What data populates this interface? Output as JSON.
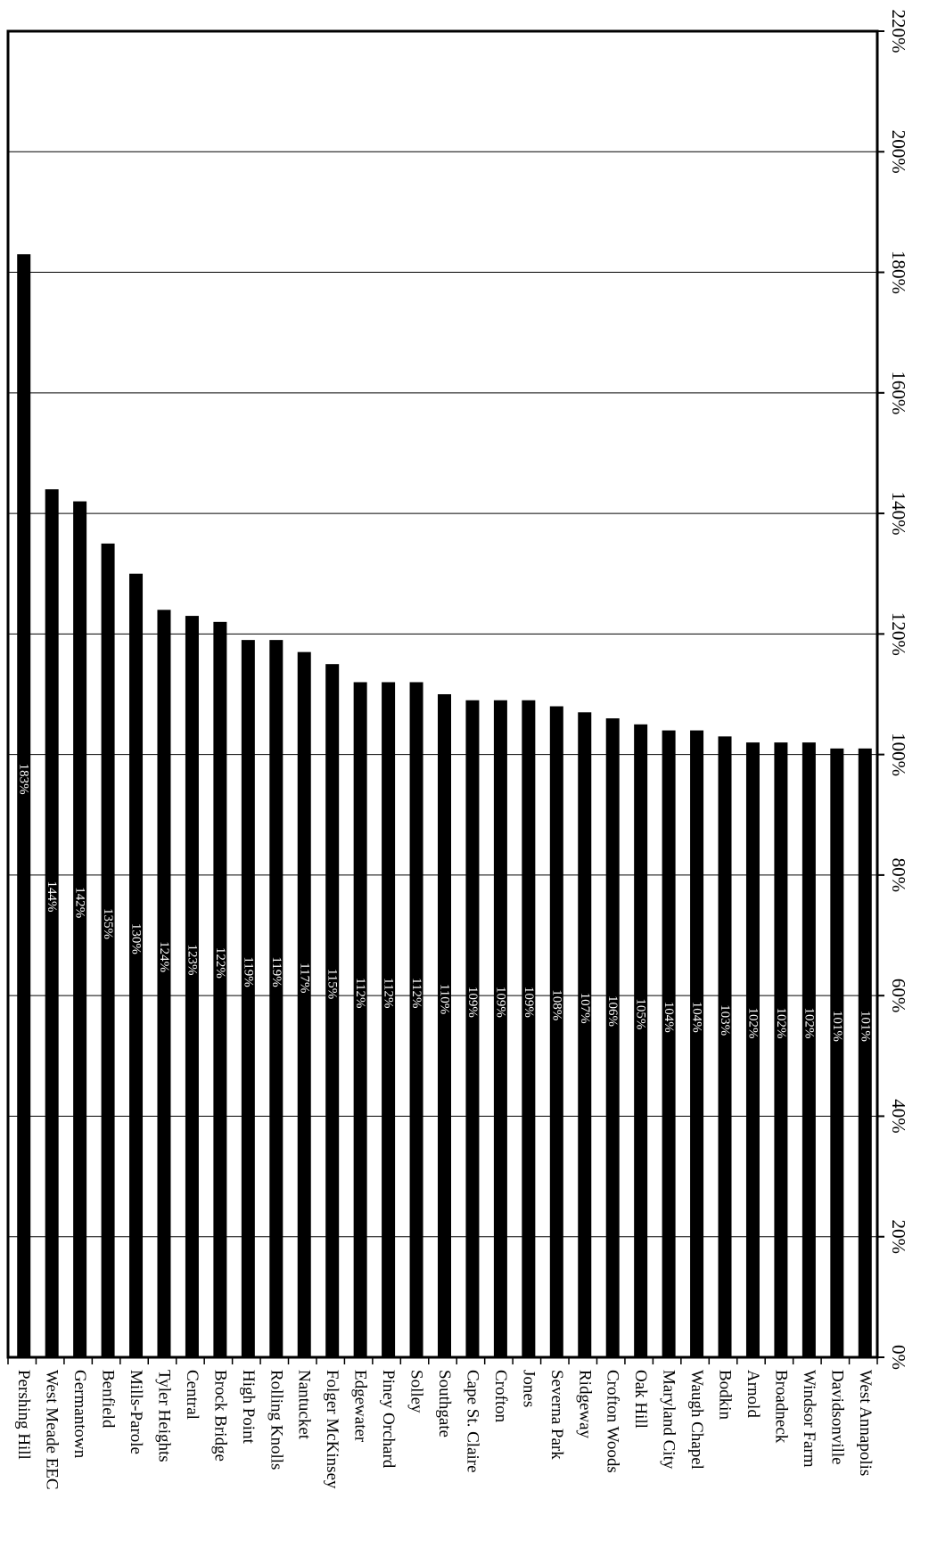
{
  "chart_data": {
    "type": "bar",
    "orientation": "rotated-90-clockwise",
    "categories": [
      "Pershing Hill",
      "West Meade EEC",
      "Germantown",
      "Benfield",
      "Mills-Parole",
      "Tyler Heights",
      "Central",
      "Brock Bridge",
      "High Point",
      "Rolling Knolls",
      "Nantucket",
      "Folger McKinsey",
      "Edgewater",
      "Piney Orchard",
      "Solley",
      "Southgate",
      "Cape St. Claire",
      "Crofton",
      "Jones",
      "Severna Park",
      "Ridgeway",
      "Crofton Woods",
      "Oak Hill",
      "Maryland City",
      "Waugh Chapel",
      "Bodkin",
      "Arnold",
      "Broadneck",
      "Windsor Farm",
      "Davidsonville",
      "West Annapolis"
    ],
    "values": [
      183,
      144,
      142,
      135,
      130,
      124,
      123,
      122,
      119,
      119,
      117,
      115,
      112,
      112,
      112,
      110,
      109,
      109,
      109,
      108,
      107,
      106,
      105,
      104,
      104,
      103,
      102,
      102,
      102,
      101,
      101
    ],
    "data_labels": [
      "183%",
      "144%",
      "142%",
      "135%",
      "130%",
      "124%",
      "123%",
      "122%",
      "119%",
      "119%",
      "117%",
      "115%",
      "112%",
      "112%",
      "112%",
      "110%",
      "109%",
      "109%",
      "109%",
      "108%",
      "107%",
      "106%",
      "105%",
      "104%",
      "104%",
      "103%",
      "102%",
      "102%",
      "102%",
      "101%",
      "101%"
    ],
    "ylim": [
      0,
      220
    ],
    "yticks": [
      0,
      20,
      40,
      60,
      80,
      100,
      120,
      140,
      160,
      180,
      200,
      220
    ],
    "ytick_labels": [
      "0%",
      "20%",
      "40%",
      "60%",
      "80%",
      "100%",
      "120%",
      "140%",
      "160%",
      "180%",
      "200%",
      "220%"
    ],
    "grid": true,
    "legend": "none",
    "title": "",
    "xlabel": "",
    "ylabel": "",
    "bar_color": "#000000",
    "label_color": "#ffffff"
  }
}
